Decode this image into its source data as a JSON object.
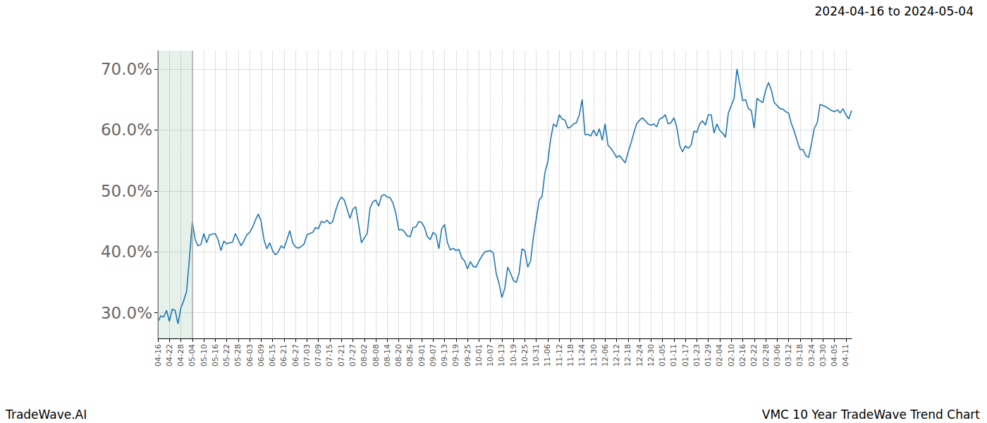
{
  "chart_data": {
    "type": "line",
    "title": "2024-04-16 to 2024-05-04",
    "annotations": [
      "TradeWave.AI",
      "VMC 10 Year TradeWave Trend Chart"
    ],
    "highlight_range": [
      "04-16",
      "05-04"
    ],
    "color": "#1f77b4",
    "grid": true,
    "ylim": [
      25.8,
      73.0
    ],
    "yticks": [
      {
        "value": 30,
        "label": "30.0%"
      },
      {
        "value": 40,
        "label": "40.0%"
      },
      {
        "value": 50,
        "label": "50.0%"
      },
      {
        "value": 60,
        "label": "60.0%"
      },
      {
        "value": 70,
        "label": "70.0%"
      }
    ],
    "categories": [
      "04-16",
      null,
      null,
      null,
      "04-22",
      null,
      null,
      null,
      "04-28",
      null,
      null,
      null,
      "05-04",
      null,
      null,
      null,
      "05-10",
      null,
      null,
      null,
      "05-16",
      null,
      null,
      null,
      "05-22",
      null,
      null,
      null,
      "05-28",
      null,
      null,
      null,
      "06-03",
      null,
      null,
      null,
      "06-09",
      null,
      null,
      null,
      "06-15",
      null,
      null,
      null,
      "06-21",
      null,
      null,
      null,
      "06-27",
      null,
      null,
      null,
      "07-03",
      null,
      null,
      null,
      "07-09",
      null,
      null,
      null,
      "07-15",
      null,
      null,
      null,
      "07-21",
      null,
      null,
      null,
      "07-27",
      null,
      null,
      null,
      "08-02",
      null,
      null,
      null,
      "08-08",
      null,
      null,
      null,
      "08-14",
      null,
      null,
      null,
      "08-20",
      null,
      null,
      null,
      "08-26",
      null,
      null,
      null,
      "09-01",
      null,
      null,
      null,
      "09-07",
      null,
      null,
      null,
      "09-13",
      null,
      null,
      null,
      "09-19",
      null,
      null,
      null,
      "09-25",
      null,
      null,
      null,
      "10-01",
      null,
      null,
      null,
      "10-07",
      null,
      null,
      null,
      "10-13",
      null,
      null,
      null,
      "10-19",
      null,
      null,
      null,
      "10-25",
      null,
      null,
      null,
      "10-31",
      null,
      null,
      null,
      "11-06",
      null,
      null,
      null,
      "11-12",
      null,
      null,
      null,
      "11-18",
      null,
      null,
      null,
      "11-24",
      null,
      null,
      null,
      "11-30",
      null,
      null,
      null,
      "12-06",
      null,
      null,
      null,
      "12-12",
      null,
      null,
      null,
      "12-18",
      null,
      null,
      null,
      "12-24",
      null,
      null,
      null,
      "12-30",
      null,
      null,
      null,
      "01-05",
      null,
      null,
      null,
      "01-11",
      null,
      null,
      null,
      "01-17",
      null,
      null,
      null,
      "01-23",
      null,
      null,
      null,
      "01-29",
      null,
      null,
      null,
      "02-04",
      null,
      null,
      null,
      "02-10",
      null,
      null,
      null,
      "02-16",
      null,
      null,
      null,
      "02-22",
      null,
      null,
      null,
      "02-28",
      null,
      null,
      null,
      "03-06",
      null,
      null,
      null,
      "03-12",
      null,
      null,
      null,
      "03-18",
      null,
      null,
      null,
      "03-24",
      null,
      null,
      null,
      "03-30",
      null,
      null,
      null,
      "04-05",
      null,
      null,
      null,
      "04-11",
      null,
      null
    ],
    "values": [
      28.5,
      29.5,
      29.3,
      30.4,
      28.6,
      30.6,
      30.4,
      28.2,
      30.8,
      32.0,
      33.5,
      39.0,
      44.9,
      42.0,
      41.0,
      41.2,
      43.0,
      41.5,
      42.8,
      42.9,
      43.0,
      42.0,
      40.2,
      41.8,
      41.3,
      41.5,
      41.6,
      43.0,
      42.0,
      41.0,
      41.8,
      42.8,
      43.2,
      44.0,
      45.2,
      46.2,
      45.0,
      42.0,
      40.5,
      41.5,
      40.2,
      39.5,
      40.0,
      41.0,
      40.6,
      42.0,
      43.5,
      41.5,
      40.8,
      40.6,
      40.9,
      41.3,
      42.8,
      43.0,
      43.2,
      44.0,
      43.8,
      45.0,
      44.8,
      45.2,
      44.6,
      45.0,
      46.8,
      48.2,
      49.0,
      48.5,
      47.0,
      45.5,
      47.0,
      47.4,
      44.5,
      41.5,
      42.3,
      43.0,
      47.2,
      48.2,
      48.5,
      47.5,
      49.2,
      49.4,
      49.0,
      48.9,
      48.0,
      46.3,
      43.6,
      43.7,
      43.3,
      42.6,
      42.5,
      44.0,
      44.1,
      45.0,
      44.8,
      44.0,
      42.5,
      42.0,
      43.2,
      42.8,
      40.5,
      43.8,
      44.5,
      41.5,
      40.3,
      40.6,
      40.2,
      40.4,
      39.0,
      38.5,
      37.2,
      38.4,
      37.6,
      37.5,
      38.5,
      39.3,
      40.0,
      40.1,
      40.2,
      39.8,
      36.5,
      34.8,
      32.5,
      34.0,
      37.5,
      36.5,
      35.3,
      35.0,
      36.5,
      40.5,
      40.2,
      37.5,
      38.5,
      42.5,
      45.5,
      48.5,
      49.1,
      53.0,
      54.8,
      58.5,
      61.0,
      60.5,
      62.5,
      61.8,
      61.6,
      60.3,
      60.5,
      61.0,
      61.2,
      62.5,
      65.0,
      59.2,
      59.3,
      59.0,
      60.0,
      59.0,
      60.2,
      58.3,
      61.0,
      57.5,
      57.0,
      56.3,
      55.5,
      55.8,
      55.2,
      54.6,
      56.3,
      57.8,
      59.5,
      61.0,
      61.6,
      62.0,
      61.5,
      61.0,
      60.8,
      61.0,
      60.5,
      61.8,
      62.0,
      62.5,
      61.0,
      61.2,
      62.0,
      60.5,
      57.5,
      56.4,
      57.4,
      57.0,
      57.5,
      59.8,
      59.6,
      61.0,
      61.5,
      60.8,
      62.5,
      62.5,
      59.5,
      61.0,
      59.9,
      59.5,
      58.8,
      62.8,
      64.0,
      65.2,
      70.0,
      67.5,
      64.8,
      65.0,
      63.5,
      63.2,
      60.3,
      65.2,
      64.8,
      64.5,
      66.5,
      67.8,
      66.5,
      64.5,
      64.0,
      63.5,
      63.4,
      63.0,
      62.8,
      61.0,
      59.8,
      58.2,
      56.8,
      56.8,
      55.8,
      55.5,
      57.8,
      60.3,
      61.2,
      64.2,
      64.0,
      63.8,
      63.5,
      63.2,
      63.0,
      63.3,
      62.8,
      63.5,
      62.5,
      61.8,
      63.2
    ]
  }
}
